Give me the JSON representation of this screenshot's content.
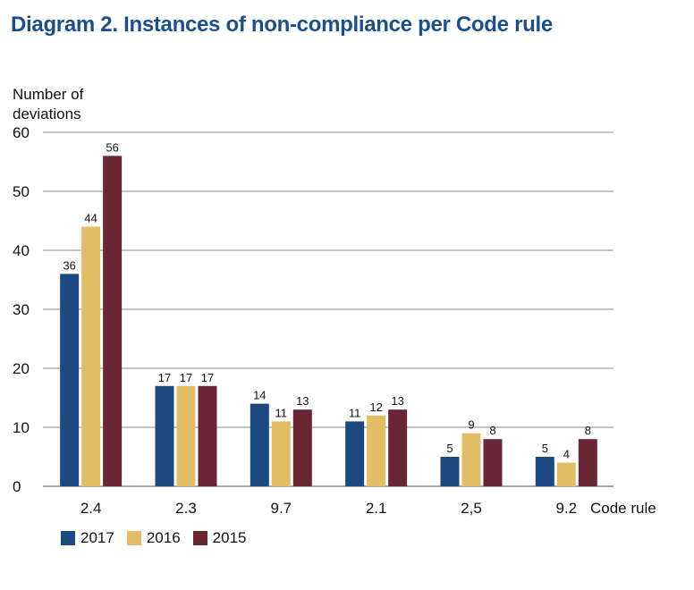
{
  "chart_data": {
    "type": "bar",
    "title": "Diagram 2. Instances of non-compliance per Code rule",
    "ylabel_lines": [
      "Number of",
      "deviations"
    ],
    "xlabel": "Code rule",
    "categories": [
      "2.4",
      "2.3",
      "9.7",
      "2.1",
      "2,5",
      "9.2"
    ],
    "ylim": [
      0,
      60
    ],
    "yticks": [
      0,
      10,
      20,
      30,
      40,
      50,
      60
    ],
    "grid": true,
    "legend_position": "bottom-left",
    "series": [
      {
        "name": "2017",
        "color": "#1c4a80",
        "values": [
          36,
          17,
          14,
          11,
          5,
          5
        ]
      },
      {
        "name": "2016",
        "color": "#e3bc66",
        "values": [
          44,
          17,
          11,
          12,
          9,
          4
        ]
      },
      {
        "name": "2015",
        "color": "#6b2636",
        "values": [
          56,
          17,
          13,
          13,
          8,
          8
        ]
      }
    ]
  }
}
